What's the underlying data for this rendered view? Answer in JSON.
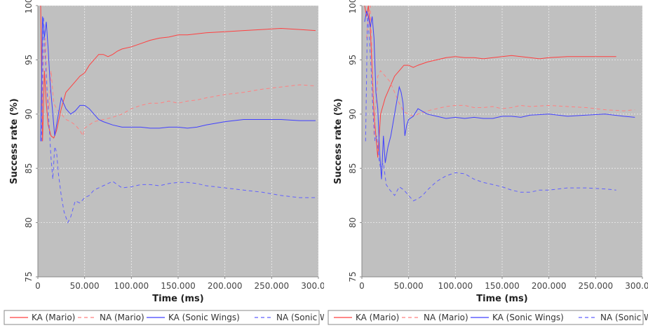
{
  "colors": {
    "plot_background": "#c0c0c0",
    "grid": "#eeeeee",
    "ka_mario": "#ff4040",
    "na_mario": "#ff8080",
    "ka_sonic": "#4040ff",
    "na_sonic": "#6060ff"
  },
  "chart_data": [
    {
      "type": "line",
      "xlabel": "Time (ms)",
      "ylabel": "Success rate (%)",
      "xlim": [
        0,
        300000
      ],
      "ylim": [
        75,
        100
      ],
      "xticks": [
        0,
        50000,
        100000,
        150000,
        200000,
        250000,
        300000
      ],
      "xtick_labels": [
        "0",
        "50.000",
        "100.000",
        "150.000",
        "200.000",
        "250.000",
        "300.000"
      ],
      "yticks": [
        75,
        80,
        85,
        90,
        95,
        100
      ],
      "ytick_labels": [
        "75",
        "80",
        "85",
        "90",
        "95",
        "100"
      ],
      "grid": true,
      "legend_position": "bottom",
      "series": [
        {
          "name": "KA (Mario)",
          "color": "#ff4040",
          "dash": "solid",
          "x": [
            3000,
            5000,
            7000,
            9000,
            11000,
            14000,
            17000,
            20000,
            25000,
            30000,
            35000,
            40000,
            45000,
            50000,
            55000,
            60000,
            65000,
            70000,
            75000,
            80000,
            85000,
            90000,
            100000,
            110000,
            120000,
            130000,
            140000,
            150000,
            160000,
            170000,
            180000,
            200000,
            220000,
            240000,
            260000,
            280000,
            297000
          ],
          "y": [
            100,
            87.5,
            94,
            91,
            89,
            88,
            87.8,
            88.5,
            90.5,
            92,
            92.5,
            93,
            93.5,
            93.8,
            94.5,
            95,
            95.5,
            95.5,
            95.3,
            95.5,
            95.8,
            96,
            96.2,
            96.5,
            96.8,
            97,
            97.1,
            97.3,
            97.3,
            97.4,
            97.5,
            97.6,
            97.7,
            97.8,
            97.9,
            97.8,
            97.7
          ]
        },
        {
          "name": "NA (Mario)",
          "color": "#ff8080",
          "dash": "dashed",
          "x": [
            4000,
            6000,
            8000,
            10000,
            12000,
            14000,
            17000,
            20000,
            25000,
            30000,
            35000,
            40000,
            45000,
            48000,
            50000,
            55000,
            60000,
            70000,
            80000,
            90000,
            100000,
            110000,
            120000,
            130000,
            140000,
            150000,
            160000,
            170000,
            180000,
            200000,
            220000,
            240000,
            260000,
            280000,
            297000
          ],
          "y": [
            87.5,
            95,
            97,
            92,
            90.5,
            94,
            91,
            90.5,
            90,
            89.5,
            89.3,
            89,
            88.5,
            88,
            88.7,
            89,
            89.3,
            89.5,
            89.7,
            90,
            90.5,
            90.8,
            91,
            91,
            91.2,
            91,
            91.2,
            91.3,
            91.5,
            91.8,
            92,
            92.3,
            92.5,
            92.7,
            92.6
          ]
        },
        {
          "name": "KA (Sonic Wings)",
          "color": "#4040ff",
          "dash": "solid",
          "x": [
            3000,
            5000,
            7000,
            9000,
            11000,
            13000,
            15000,
            18000,
            21000,
            25000,
            30000,
            35000,
            40000,
            45000,
            50000,
            55000,
            60000,
            65000,
            70000,
            80000,
            90000,
            100000,
            110000,
            120000,
            130000,
            140000,
            150000,
            160000,
            170000,
            180000,
            200000,
            220000,
            240000,
            260000,
            280000,
            297000
          ],
          "y": [
            87.5,
            99,
            97,
            98.5,
            96,
            93,
            91,
            88,
            89.5,
            91.5,
            90.5,
            90,
            90.3,
            90.8,
            90.8,
            90.5,
            90,
            89.5,
            89.3,
            89,
            88.8,
            88.8,
            88.8,
            88.7,
            88.7,
            88.8,
            88.8,
            88.7,
            88.8,
            89,
            89.3,
            89.5,
            89.5,
            89.5,
            89.4,
            89.4
          ]
        },
        {
          "name": "NA (Sonic Wings)",
          "color": "#6060ff",
          "dash": "dashed",
          "x": [
            4000,
            6000,
            8000,
            10000,
            12000,
            14000,
            16000,
            18000,
            20000,
            22000,
            25000,
            28000,
            30000,
            32000,
            35000,
            40000,
            45000,
            50000,
            55000,
            60000,
            70000,
            80000,
            90000,
            100000,
            110000,
            120000,
            130000,
            140000,
            150000,
            160000,
            170000,
            180000,
            200000,
            220000,
            240000,
            260000,
            280000,
            297000
          ],
          "y": [
            87.5,
            99,
            95,
            92,
            89,
            86,
            84,
            87,
            86.5,
            84.5,
            82.5,
            81,
            80.5,
            80,
            80.5,
            82,
            81.8,
            82.3,
            82.5,
            83,
            83.4,
            83.8,
            83.2,
            83.3,
            83.5,
            83.5,
            83.4,
            83.6,
            83.7,
            83.7,
            83.6,
            83.4,
            83.2,
            83,
            82.8,
            82.5,
            82.3,
            82.3
          ]
        }
      ],
      "legend": [
        {
          "label": "KA (Mario)",
          "color": "#ff4040",
          "dash": "solid"
        },
        {
          "label": "NA (Mario)",
          "color": "#ff8080",
          "dash": "dashed"
        },
        {
          "label": "KA (Sonic Wings)",
          "color": "#4040ff",
          "dash": "solid"
        },
        {
          "label": "NA (Sonic Wings)",
          "color": "#6060ff",
          "dash": "dashed"
        }
      ]
    },
    {
      "type": "line",
      "xlabel": "Time (ms)",
      "ylabel": "Success rate (%)",
      "xlim": [
        0,
        300000
      ],
      "ylim": [
        75,
        100
      ],
      "xticks": [
        0,
        50000,
        100000,
        150000,
        200000,
        250000,
        300000
      ],
      "xtick_labels": [
        "0",
        "50.000",
        "100.000",
        "150.000",
        "200.000",
        "250.000",
        "300.000"
      ],
      "yticks": [
        75,
        80,
        85,
        90,
        95,
        100
      ],
      "ytick_labels": [
        "75",
        "80",
        "85",
        "90",
        "95",
        "100"
      ],
      "grid": true,
      "legend_position": "bottom",
      "series": [
        {
          "name": "KA (Mario)",
          "color": "#ff4040",
          "dash": "solid",
          "x": [
            3000,
            5000,
            7000,
            9000,
            11000,
            13000,
            15000,
            17000,
            20000,
            25000,
            30000,
            35000,
            40000,
            45000,
            50000,
            55000,
            60000,
            70000,
            80000,
            90000,
            100000,
            110000,
            120000,
            130000,
            140000,
            150000,
            160000,
            170000,
            180000,
            190000,
            200000,
            220000,
            240000,
            260000,
            272000
          ],
          "y": [
            100,
            99,
            100,
            98,
            94,
            90,
            88,
            86,
            90,
            91.5,
            92.5,
            93.5,
            94,
            94.5,
            94.5,
            94.3,
            94.5,
            94.8,
            95,
            95.2,
            95.3,
            95.2,
            95.2,
            95.1,
            95.2,
            95.3,
            95.4,
            95.3,
            95.2,
            95.1,
            95.2,
            95.3,
            95.3,
            95.3,
            95.3
          ]
        },
        {
          "name": "NA (Mario)",
          "color": "#ff8080",
          "dash": "dashed",
          "x": [
            5000,
            7000,
            9000,
            11000,
            13000,
            15000,
            17000,
            20000,
            25000,
            30000,
            35000,
            40000,
            45000,
            50000,
            55000,
            60000,
            70000,
            80000,
            90000,
            100000,
            110000,
            120000,
            130000,
            140000,
            150000,
            160000,
            170000,
            180000,
            200000,
            220000,
            240000,
            260000,
            280000,
            292000
          ],
          "y": [
            97,
            99,
            100,
            95,
            88,
            91,
            93.5,
            94,
            93.5,
            93,
            92,
            91,
            90.2,
            90,
            89.8,
            90,
            90.3,
            90.5,
            90.7,
            90.8,
            90.8,
            90.6,
            90.6,
            90.7,
            90.5,
            90.6,
            90.8,
            90.7,
            90.8,
            90.7,
            90.6,
            90.4,
            90.3,
            90.4
          ]
        },
        {
          "name": "KA (Sonic Wings)",
          "color": "#4040ff",
          "dash": "solid",
          "x": [
            3000,
            5000,
            7000,
            9000,
            11000,
            13000,
            15000,
            17000,
            19000,
            21000,
            23000,
            25000,
            28000,
            31000,
            34000,
            37000,
            40000,
            42000,
            44000,
            46000,
            48000,
            50000,
            55000,
            60000,
            70000,
            80000,
            90000,
            100000,
            110000,
            120000,
            130000,
            140000,
            150000,
            160000,
            170000,
            180000,
            200000,
            220000,
            240000,
            260000,
            280000,
            292000
          ],
          "y": [
            98.5,
            99.5,
            99,
            98,
            99,
            97,
            92,
            90.5,
            86.5,
            84,
            88,
            85.5,
            87,
            88,
            89.5,
            91,
            92.5,
            92,
            91,
            88,
            89,
            89.5,
            89.8,
            90.5,
            90,
            89.8,
            89.6,
            89.7,
            89.6,
            89.7,
            89.6,
            89.6,
            89.8,
            89.8,
            89.7,
            89.9,
            90,
            89.8,
            89.9,
            90,
            89.8,
            89.7
          ]
        },
        {
          "name": "NA (Sonic Wings)",
          "color": "#6060ff",
          "dash": "dashed",
          "x": [
            4000,
            6000,
            8000,
            10000,
            12000,
            14000,
            16000,
            18000,
            20000,
            23000,
            26000,
            30000,
            35000,
            40000,
            45000,
            50000,
            55000,
            60000,
            65000,
            70000,
            80000,
            90000,
            100000,
            110000,
            120000,
            130000,
            140000,
            150000,
            160000,
            170000,
            180000,
            190000,
            200000,
            220000,
            240000,
            260000,
            272000
          ],
          "y": [
            87.5,
            99,
            97,
            94,
            90,
            87.5,
            88,
            86,
            85,
            85.5,
            83.5,
            83,
            82.5,
            83.3,
            83,
            82.5,
            82,
            82.2,
            82.5,
            83,
            83.8,
            84.3,
            84.6,
            84.5,
            84,
            83.7,
            83.5,
            83.3,
            83,
            82.8,
            82.8,
            83,
            83,
            83.2,
            83.2,
            83.1,
            83
          ]
        }
      ],
      "legend": [
        {
          "label": "KA (Mario)",
          "color": "#ff4040",
          "dash": "solid"
        },
        {
          "label": "NA (Mario)",
          "color": "#ff8080",
          "dash": "dashed"
        },
        {
          "label": "KA (Sonic Wings)",
          "color": "#4040ff",
          "dash": "solid"
        },
        {
          "label": "NA (Sonic Wings)",
          "color": "#6060ff",
          "dash": "dashed"
        }
      ]
    }
  ]
}
